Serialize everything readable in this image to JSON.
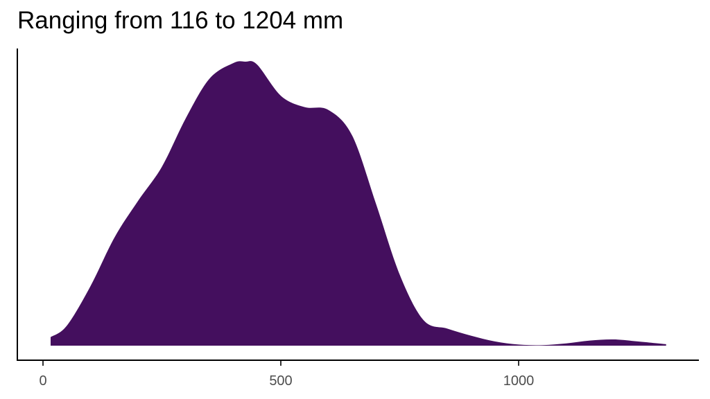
{
  "chart_data": {
    "type": "area",
    "subtype": "density",
    "title": "Ranging from 116 to 1204 mm",
    "xlabel": "",
    "ylabel": "",
    "x_ticks": [
      0,
      500,
      1000
    ],
    "x_tick_labels": [
      "0",
      "500",
      "1000"
    ],
    "xlim": [
      -60,
      1370
    ],
    "y_ticks": [],
    "grid": false,
    "legend": null,
    "fill_color": "#440F5E",
    "x": [
      16,
      50,
      100,
      150,
      200,
      250,
      300,
      350,
      400,
      425,
      450,
      500,
      550,
      600,
      650,
      700,
      750,
      800,
      850,
      900,
      950,
      1000,
      1050,
      1100,
      1150,
      1200,
      1250,
      1310
    ],
    "density_relative": [
      0.03,
      0.07,
      0.21,
      0.38,
      0.51,
      0.63,
      0.8,
      0.94,
      0.995,
      1.0,
      0.99,
      0.88,
      0.84,
      0.83,
      0.74,
      0.5,
      0.25,
      0.09,
      0.06,
      0.035,
      0.015,
      0.004,
      0.002,
      0.008,
      0.018,
      0.022,
      0.015,
      0.005
    ]
  },
  "title": "Ranging from 116 to 1204 mm",
  "axis": {
    "x_ticks": [
      {
        "value": 0,
        "label": "0"
      },
      {
        "value": 500,
        "label": "500"
      },
      {
        "value": 1000,
        "label": "1000"
      }
    ]
  }
}
